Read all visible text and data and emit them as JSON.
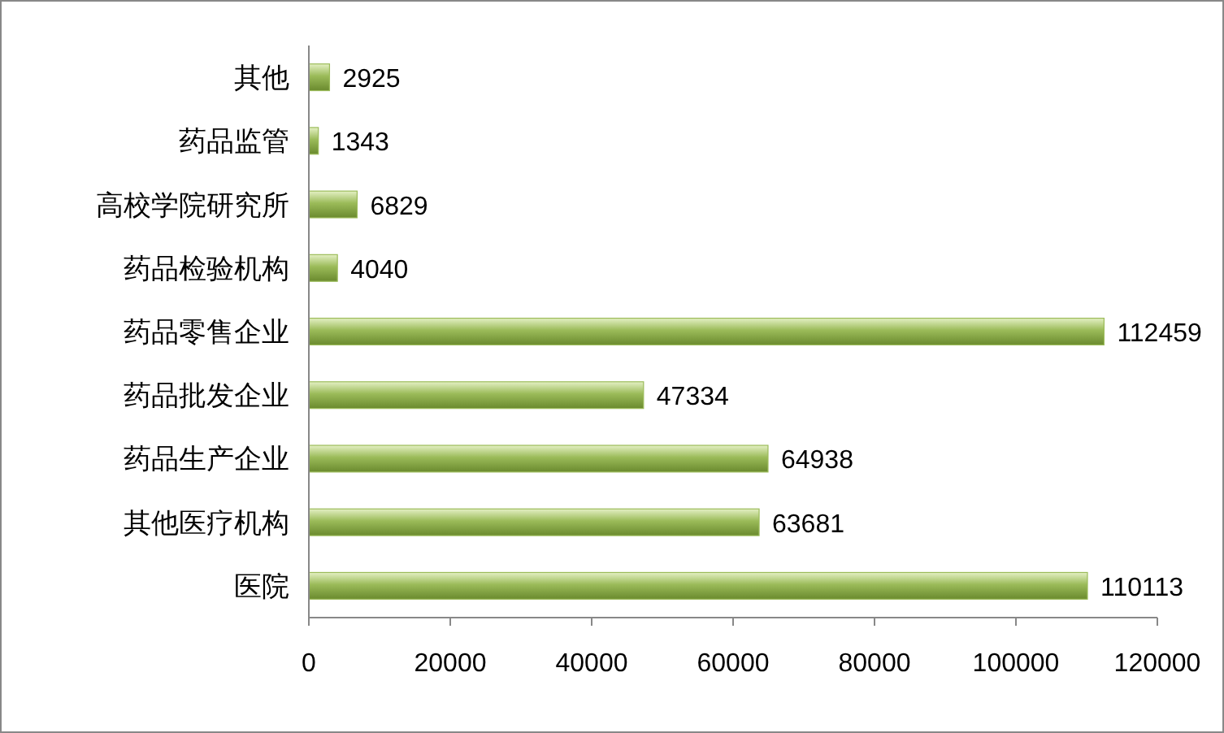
{
  "chart_data": {
    "type": "bar",
    "orientation": "horizontal",
    "categories": [
      "其他",
      "药品监管",
      "高校学院研究所",
      "药品检验机构",
      "药品零售企业",
      "药品批发企业",
      "药品生产企业",
      "其他医疗机构",
      "医院"
    ],
    "values": [
      2925,
      1343,
      6829,
      4040,
      112459,
      47334,
      64938,
      63681,
      110113
    ],
    "color": "#9bbb59",
    "xlim": [
      0,
      120000
    ],
    "xticks": [
      0,
      20000,
      40000,
      60000,
      80000,
      100000,
      120000
    ],
    "data_labels": true,
    "grid": false
  }
}
